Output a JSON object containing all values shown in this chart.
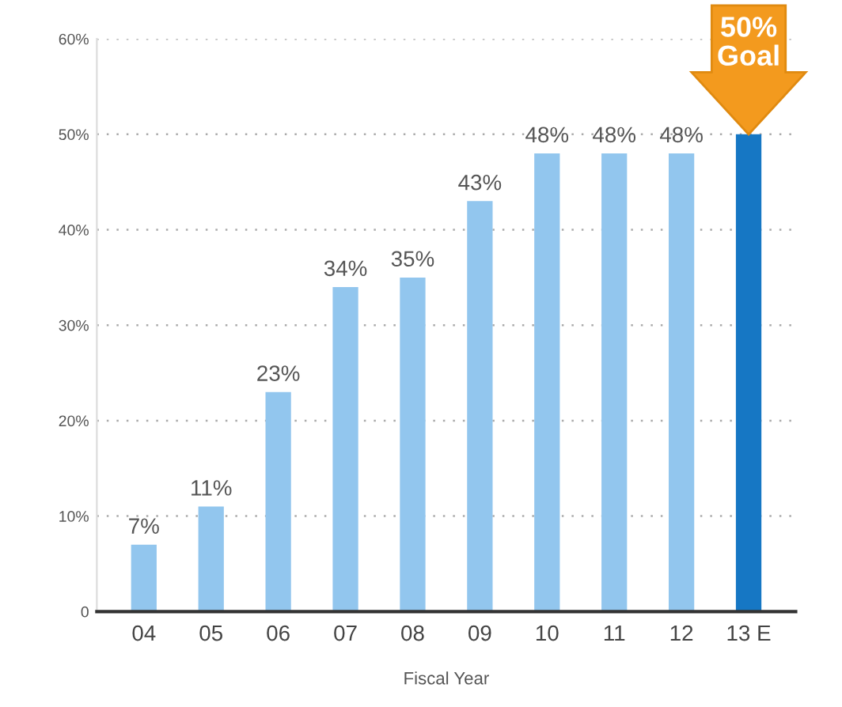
{
  "chart_data": {
    "type": "bar",
    "xlabel": "Fiscal Year",
    "categories": [
      "04",
      "05",
      "06",
      "07",
      "08",
      "09",
      "10",
      "11",
      "12",
      "13 E"
    ],
    "values": [
      7,
      11,
      23,
      34,
      35,
      43,
      48,
      48,
      48,
      50
    ],
    "colors": [
      "#92c6ee",
      "#92c6ee",
      "#92c6ee",
      "#92c6ee",
      "#92c6ee",
      "#92c6ee",
      "#92c6ee",
      "#92c6ee",
      "#92c6ee",
      "#1677c4"
    ],
    "value_labels": [
      "7%",
      "11%",
      "23%",
      "34%",
      "35%",
      "43%",
      "48%",
      "48%",
      "48%",
      null
    ],
    "ylim": [
      0,
      60
    ],
    "yticks": [
      0,
      {
        "value": 10,
        "label": "10%"
      },
      {
        "value": 20,
        "label": "20%"
      },
      {
        "value": 30,
        "label": "30%"
      },
      {
        "value": 40,
        "label": "40%"
      },
      {
        "value": 50,
        "label": "50%"
      },
      {
        "value": 60,
        "label": "60%"
      }
    ],
    "grid": "y",
    "annotations": [
      {
        "text": "50%\nGoal",
        "x": "13 E",
        "y": 50
      }
    ]
  }
}
